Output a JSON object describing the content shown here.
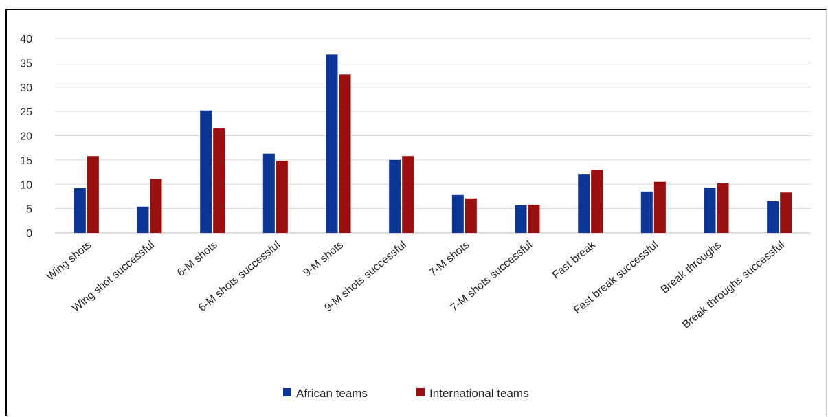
{
  "chart_data": {
    "type": "bar",
    "categories": [
      "Wing shots",
      "Wing shot successful",
      "6-M shots",
      "6-M shots successful",
      "9-M shots",
      "9-M shots successful",
      "7-M shots",
      "7-M shots successful",
      "Fast break",
      "Fast break successful",
      "Break throughs",
      "Break throughs successful"
    ],
    "series": [
      {
        "name": "African teams",
        "color": "#0d3595",
        "values": [
          9.2,
          5.4,
          25.2,
          16.3,
          36.7,
          15.0,
          7.8,
          5.7,
          12.0,
          8.5,
          9.3,
          6.5
        ]
      },
      {
        "name": "International teams",
        "color": "#9a0f0f",
        "values": [
          15.8,
          11.1,
          21.5,
          14.8,
          32.6,
          15.8,
          7.1,
          5.8,
          12.9,
          10.5,
          10.2,
          8.3
        ]
      }
    ],
    "y_ticks": [
      "0",
      "5",
      "10",
      "15",
      "20",
      "25",
      "30",
      "35",
      "40"
    ],
    "ylim": [
      0,
      40
    ],
    "grid": true,
    "legend_position": "bottom"
  }
}
